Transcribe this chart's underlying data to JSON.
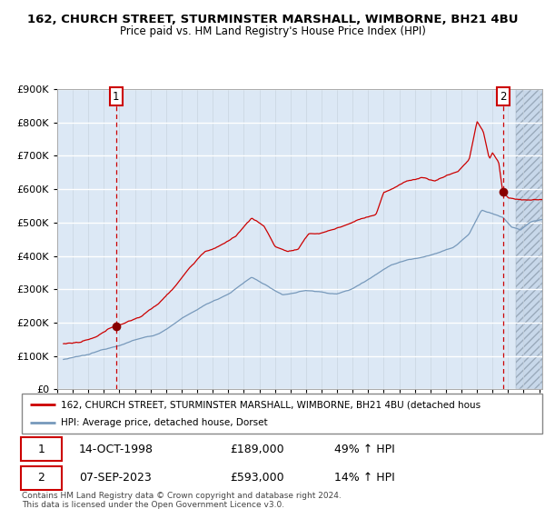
{
  "title1": "162, CHURCH STREET, STURMINSTER MARSHALL, WIMBORNE, BH21 4BU",
  "title2": "Price paid vs. HM Land Registry's House Price Index (HPI)",
  "legend_line1": "162, CHURCH STREET, STURMINSTER MARSHALL, WIMBORNE, BH21 4BU (detached hous",
  "legend_line2": "HPI: Average price, detached house, Dorset",
  "transaction1_date": "14-OCT-1998",
  "transaction1_price": "£189,000",
  "transaction1_hpi": "49% ↑ HPI",
  "transaction2_date": "07-SEP-2023",
  "transaction2_price": "£593,000",
  "transaction2_hpi": "14% ↑ HPI",
  "copyright": "Contains HM Land Registry data © Crown copyright and database right 2024.\nThis data is licensed under the Open Government Licence v3.0.",
  "red_line_color": "#cc0000",
  "blue_line_color": "#7799bb",
  "bg_color": "#dce8f5",
  "grid_color": "#ffffff",
  "marker_color": "#880000",
  "vline_color": "#cc0000",
  "label_box_edge": "#cc0000",
  "ylim": [
    0,
    900000
  ],
  "yticks": [
    0,
    100000,
    200000,
    300000,
    400000,
    500000,
    600000,
    700000,
    800000,
    900000
  ],
  "xlim_start": 1995.3,
  "xlim_end": 2026.2,
  "hatch_start": 2024.5,
  "transaction1_x": 1998.78,
  "transaction1_y": 189000,
  "transaction2_x": 2023.67,
  "transaction2_y": 593000
}
